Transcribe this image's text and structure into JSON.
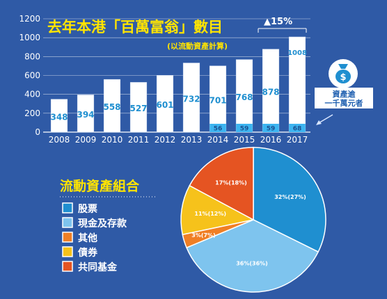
{
  "colors": {
    "background": "#2f5aa6",
    "title": "#ffe400",
    "bar": "#ffffff",
    "bar_outline": "#c9d7ee",
    "bar_label": "#1f8fd0",
    "base_segment": "#3cb4f0",
    "axis_text": "#ffffff",
    "gridline": "#ffffff",
    "icon": "#1f8fd0",
    "callout_text": "#2060b0",
    "arrow": "#d9e6ff"
  },
  "chart_data": [
    {
      "type": "bar",
      "title": "去年本港「百萬富翁」數目",
      "subtitle": "(以流動資產計算)",
      "categories": [
        "2008",
        "2009",
        "2010",
        "2011",
        "2012",
        "2013",
        "2014",
        "2015",
        "2016",
        "2017"
      ],
      "series": [
        {
          "values": [
            348,
            394,
            558,
            527,
            601,
            732,
            701,
            768,
            878,
            1008
          ]
        },
        {
          "values": [
            null,
            null,
            null,
            null,
            null,
            null,
            56,
            59,
            59,
            68
          ]
        }
      ],
      "value_labels": [
        "348",
        "394",
        "558",
        "527",
        "601",
        "732",
        "701",
        "768",
        "878",
        "1008"
      ],
      "base_labels": [
        "",
        "",
        "",
        "",
        "",
        "",
        "56",
        "59",
        "59",
        "68"
      ],
      "ylim": [
        0,
        1200
      ],
      "yticks": [
        "0",
        "200",
        "400",
        "600",
        "800",
        "1000",
        "1200"
      ],
      "grid": true,
      "annotation": "▲15%",
      "callout": {
        "line1": "資產逾",
        "line2": "一千萬元者",
        "icon": "money-bag-icon"
      }
    },
    {
      "type": "pie",
      "title": "流動資產組合",
      "slices": [
        {
          "label": "股票",
          "value": 32,
          "text": "32%(27%)",
          "color": "#1f8fd0"
        },
        {
          "label": "現金及存款",
          "value": 36,
          "text": "36%(36%)",
          "color": "#7ec4ee"
        },
        {
          "label": "其他",
          "value": 3,
          "text": "3%(7%)",
          "color": "#f07f25"
        },
        {
          "label": "債券",
          "value": 11,
          "text": "11%(12%)",
          "color": "#f6c21b"
        },
        {
          "label": "共同基金",
          "value": 17,
          "text": "17%(18%)",
          "color": "#e55422"
        }
      ],
      "legend_position": "left"
    }
  ]
}
